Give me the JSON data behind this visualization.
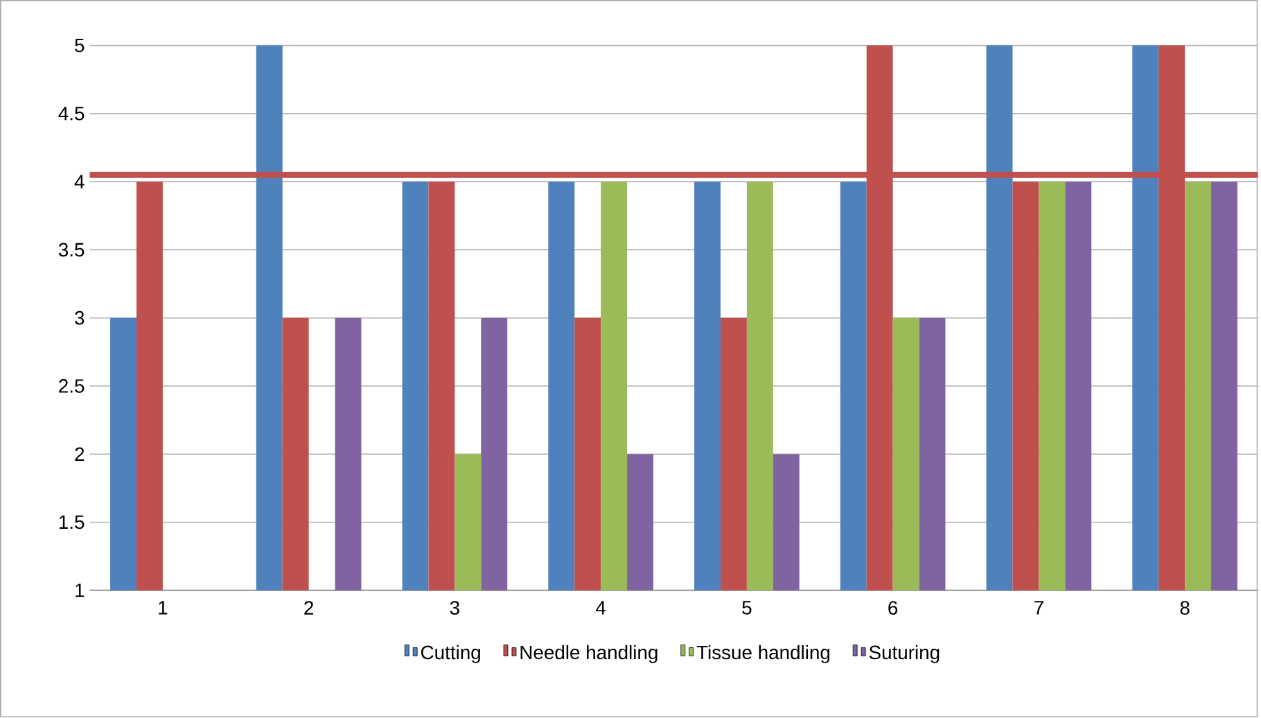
{
  "chart_data": {
    "type": "bar",
    "categories": [
      "1",
      "2",
      "3",
      "4",
      "5",
      "6",
      "7",
      "8"
    ],
    "series": [
      {
        "name": "Cutting",
        "color": "#4f81bd",
        "values": [
          3,
          5,
          4,
          4,
          4,
          4,
          5,
          5
        ]
      },
      {
        "name": "Needle handling",
        "color": "#c0504d",
        "values": [
          4,
          3,
          4,
          3,
          3,
          5,
          4,
          5
        ]
      },
      {
        "name": "Tissue handling",
        "color": "#9bbb59",
        "values": [
          null,
          null,
          2,
          4,
          4,
          3,
          4,
          4
        ]
      },
      {
        "name": "Suturing",
        "color": "#8064a2",
        "values": [
          null,
          3,
          3,
          2,
          2,
          3,
          4,
          4
        ]
      }
    ],
    "ylim": [
      1,
      5
    ],
    "yticks": [
      1,
      1.5,
      2,
      2.5,
      3,
      3.5,
      4,
      4.5,
      5
    ],
    "ref_lines": [
      {
        "axis": "y",
        "value": 4.05,
        "color": "#c0504d"
      }
    ],
    "grid": "y",
    "legend": "bottom"
  }
}
